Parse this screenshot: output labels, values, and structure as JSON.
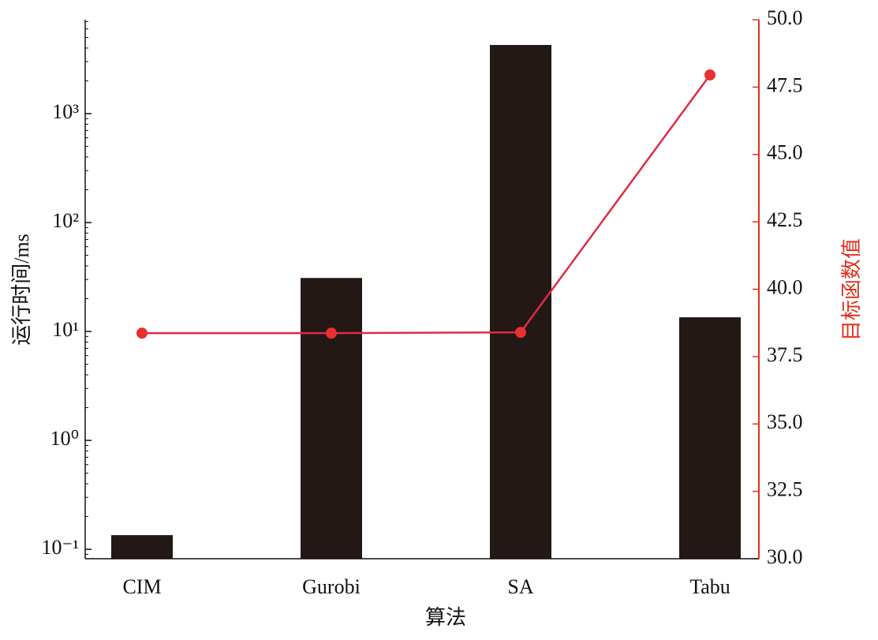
{
  "chart_data": {
    "type": "bar",
    "categories": [
      "CIM",
      "Gurobi",
      "SA",
      "Tabu"
    ],
    "xlabel": "算法",
    "ylabel": "运行时间/ms",
    "y2label": "目标函数值",
    "ylog": true,
    "ylim": [
      0.082,
      7280
    ],
    "yticks": [
      {
        "value": 0.1,
        "label": "10⁻¹"
      },
      {
        "value": 1,
        "label": "10⁰"
      },
      {
        "value": 10,
        "label": "10¹"
      },
      {
        "value": 100,
        "label": "10²"
      },
      {
        "value": 1000,
        "label": "10³"
      }
    ],
    "y2lim": [
      30,
      50
    ],
    "y2ticks": [
      {
        "value": 30,
        "label": "30.0"
      },
      32.5,
      {
        "value": 35,
        "label": "35.0"
      },
      37.5,
      {
        "value": 40,
        "label": "40.0"
      },
      42.5,
      {
        "value": 45,
        "label": "45.0"
      },
      47.5,
      {
        "value": 50,
        "label": "50.0"
      }
    ],
    "y2color": "#e0301e",
    "series": [
      {
        "type": "bar",
        "color": "#231815",
        "values": [
          0.135,
          31,
          4270,
          13.5
        ]
      },
      {
        "type": "line",
        "axis": "y2",
        "color": "#e02a44",
        "marker_color": "#e8312f",
        "values": [
          38.37,
          38.37,
          38.4,
          47.95
        ]
      }
    ]
  }
}
